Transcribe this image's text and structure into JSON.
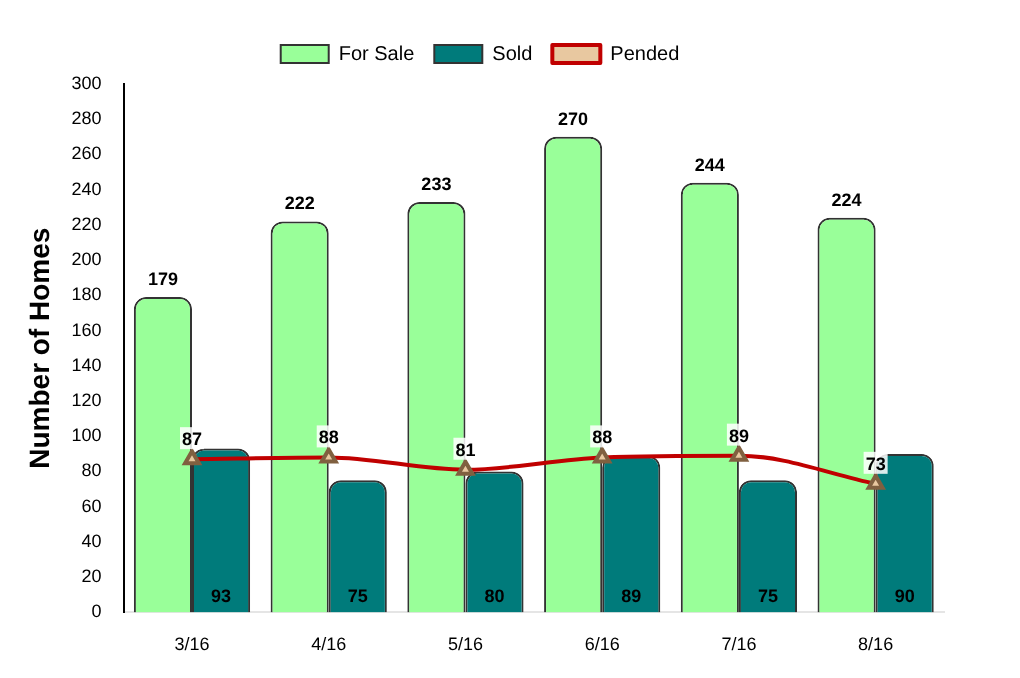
{
  "chart_data": {
    "type": "bar",
    "ylabel": "Number of Homes",
    "categories": [
      "3/16",
      "4/16",
      "5/16",
      "6/16",
      "7/16",
      "8/16"
    ],
    "series": [
      {
        "name": "For Sale",
        "color": "#99ff99",
        "values": [
          179,
          222,
          233,
          270,
          244,
          224
        ]
      },
      {
        "name": "Sold",
        "color": "#007b7b",
        "values": [
          93,
          75,
          80,
          89,
          75,
          90
        ]
      },
      {
        "name": "Pended",
        "type": "line",
        "color": "#c00000",
        "values": [
          87,
          88,
          81,
          88,
          89,
          73
        ]
      }
    ],
    "ylim": [
      0,
      300
    ],
    "yticks": [
      0,
      20,
      40,
      60,
      80,
      100,
      120,
      140,
      160,
      180,
      200,
      220,
      240,
      260,
      280,
      300
    ],
    "data_labels": true,
    "legend": "top",
    "marker": "triangle",
    "line_style": "solid",
    "grid": false
  }
}
